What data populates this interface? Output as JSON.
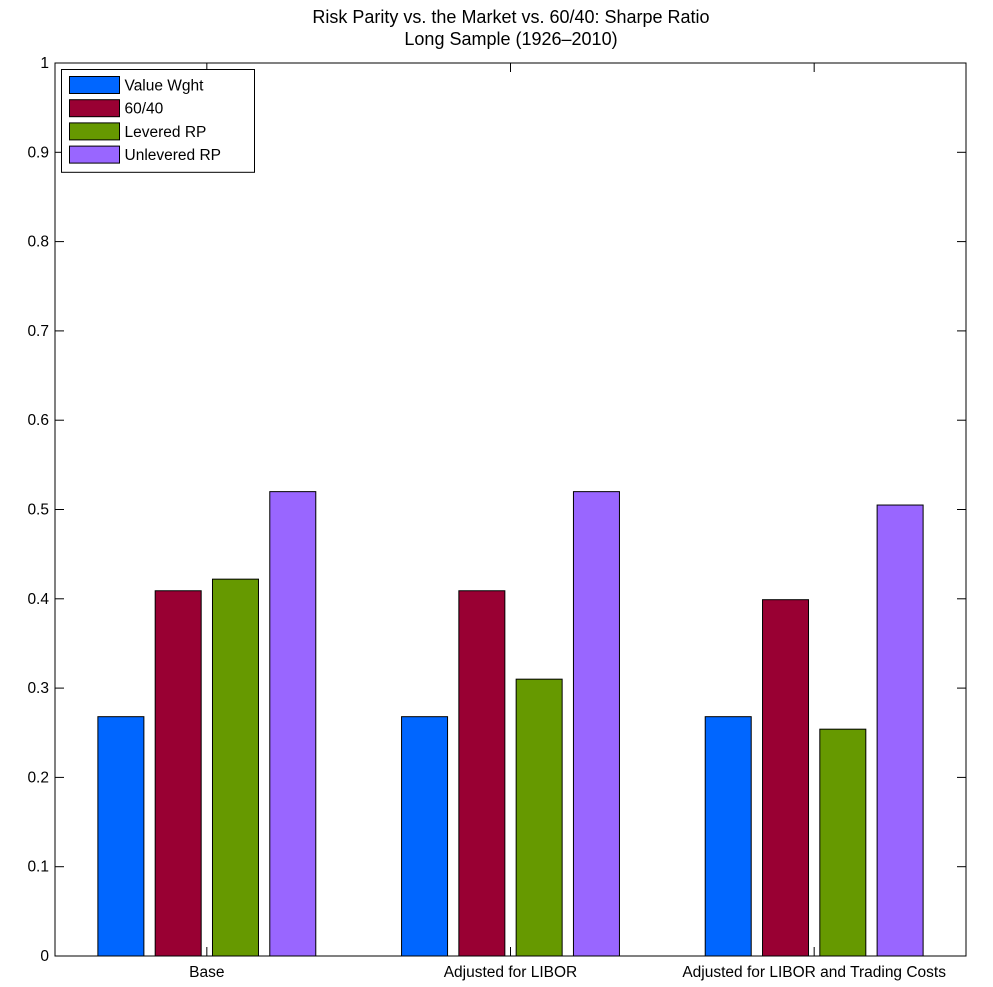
{
  "chart_data": {
    "type": "bar",
    "title": "Risk Parity vs. the Market vs. 60/40: Sharpe Ratio",
    "subtitle": "Long Sample (1926–2010)",
    "xlabel": "",
    "ylabel": "",
    "categories": [
      "Base",
      "Adjusted for LIBOR",
      "Adjusted for LIBOR and Trading Costs"
    ],
    "series": [
      {
        "name": "Value Wght",
        "color": "#0066ff",
        "values": [
          0.268,
          0.268,
          0.268
        ]
      },
      {
        "name": "60/40",
        "color": "#990033",
        "values": [
          0.409,
          0.409,
          0.399
        ]
      },
      {
        "name": "Levered RP",
        "color": "#669900",
        "values": [
          0.422,
          0.31,
          0.254
        ]
      },
      {
        "name": "Unlevered RP",
        "color": "#9966ff",
        "values": [
          0.52,
          0.52,
          0.505
        ]
      }
    ],
    "ylim": [
      0,
      1
    ],
    "yticks": [
      0,
      0.1,
      0.2,
      0.3,
      0.4,
      0.5,
      0.6,
      0.7,
      0.8,
      0.9,
      1
    ],
    "ytick_labels": [
      "0",
      "0.1",
      "0.2",
      "0.3",
      "0.4",
      "0.5",
      "0.6",
      "0.7",
      "0.8",
      "0.9",
      "1"
    ],
    "grid": false,
    "legend": "top-left"
  }
}
